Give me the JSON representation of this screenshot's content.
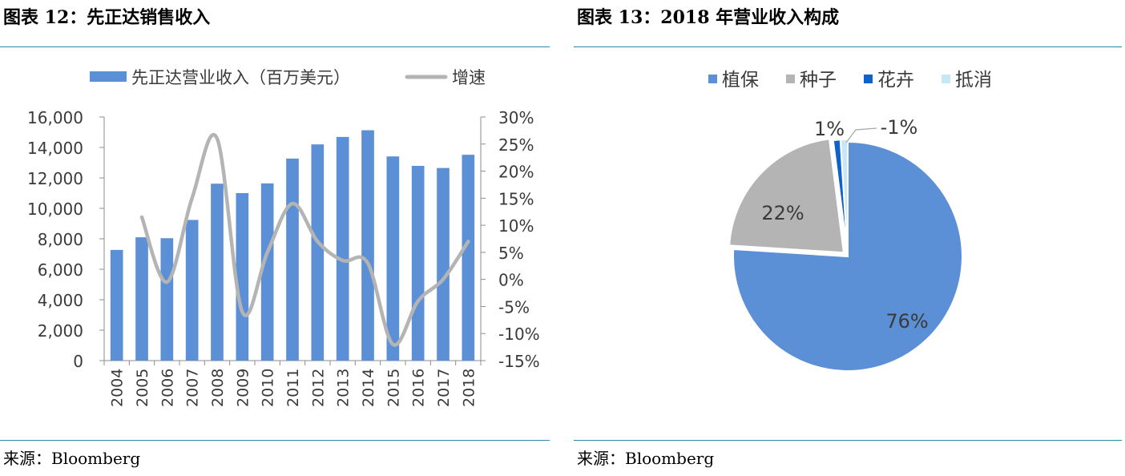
{
  "left_figure": {
    "title": "图表 12：先正达销售收入",
    "source": "来源：Bloomberg"
  },
  "right_figure": {
    "title": "图表 13：2018 年营业收入构成",
    "source": "来源：Bloomberg"
  },
  "colors": {
    "bar_blue": "#5b8fd6",
    "line_gray": "#b4b4b4",
    "rule_teal": "#2b8ba8",
    "pie_blue": "#5b8fd6",
    "pie_gray": "#b4b4b4",
    "pie_darkblue": "#0f62c9",
    "pie_lightblue": "#c7e7f7"
  },
  "chart_data": [
    {
      "type": "bar",
      "categories": [
        "2004",
        "2005",
        "2006",
        "2007",
        "2008",
        "2009",
        "2010",
        "2011",
        "2012",
        "2013",
        "2014",
        "2015",
        "2016",
        "2017",
        "2018"
      ],
      "series": [
        {
          "name": "先正达营业收入（百万美元）",
          "type": "bar",
          "axis": "left",
          "values": [
            7270,
            8100,
            8040,
            9240,
            11620,
            11000,
            11640,
            13270,
            14200,
            14690,
            15130,
            13410,
            12790,
            12650,
            13520
          ]
        },
        {
          "name": "增速",
          "type": "line",
          "axis": "right",
          "values": [
            null,
            11.5,
            -0.5,
            15,
            26,
            -6,
            5,
            14,
            7,
            3.5,
            3,
            -12,
            -4,
            0,
            7
          ]
        }
      ],
      "yticks_left": [
        "0",
        "2,000",
        "4,000",
        "6,000",
        "8,000",
        "10,000",
        "12,000",
        "14,000",
        "16,000"
      ],
      "yticks_right": [
        "-15%",
        "-10%",
        "-5%",
        "0%",
        "5%",
        "10%",
        "15%",
        "20%",
        "25%",
        "30%"
      ],
      "ylim_left": [
        0,
        16000
      ],
      "ylim_right": [
        -15,
        30
      ],
      "legend_position": "top",
      "grid": false
    },
    {
      "type": "pie",
      "labels": [
        "植保",
        "种子",
        "花卉",
        "抵消"
      ],
      "values": [
        76,
        22,
        1,
        -1
      ],
      "data_labels": [
        "76%",
        "22%",
        "1%",
        "-1%"
      ],
      "legend_position": "top",
      "start": "12 o'clock, clockwise"
    }
  ]
}
